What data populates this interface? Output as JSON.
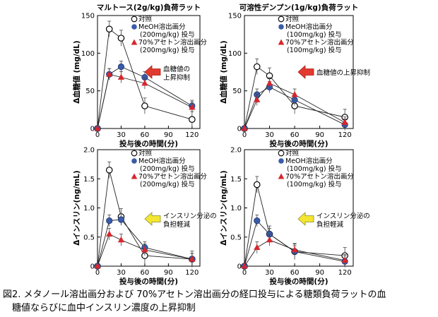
{
  "caption": {
    "line1": "図2. メタノール溶出画分および 70%アセトン溶出画分の経口投与による糖類負荷ラットの血",
    "line2": "糖値ならびに血中インスリン濃度の上昇抑制"
  },
  "colors": {
    "meoh": "#3a5ba8",
    "acetone": "#d8262c",
    "control": "#ffffff",
    "arrow_red": "#e23a2e",
    "arrow_yellow": "#f4e630"
  },
  "chart_data": [
    {
      "type": "line",
      "title": "マルトース(2g/kg)負荷ラット",
      "xlabel": "投与後の時間(分)",
      "ylabel": "Δ血糖値 (mg/dL)",
      "x": [
        0,
        15,
        30,
        60,
        120
      ],
      "xticks": [
        "0",
        "30",
        "60",
        "90",
        "120"
      ],
      "xlim": [
        0,
        130
      ],
      "ylim": [
        0,
        150
      ],
      "yticks": [
        "0",
        "50",
        "100",
        "150"
      ],
      "series": [
        {
          "name": "対照",
          "marker": "circle-open",
          "values": [
            0,
            132,
            120,
            30,
            12
          ]
        },
        {
          "name": "MeOH溶出画分",
          "name2": "(200mg/kg) 投与",
          "marker": "circle-filled",
          "values": [
            0,
            72,
            82,
            68,
            30
          ]
        },
        {
          "name": "70%アセトン溶出画分",
          "name2": "(200mg/kg) 投与",
          "marker": "triangle-filled",
          "values": [
            0,
            72,
            68,
            60,
            28
          ]
        }
      ],
      "annotation": {
        "line1": "血糖値の",
        "line2": "上昇抑制",
        "arrow": "red"
      }
    },
    {
      "type": "line",
      "title": "可溶性デンプン(1g/kg)負荷ラット",
      "xlabel": "投与後の時間(分)",
      "ylabel": "Δ血糖値 (mg/dL)",
      "x": [
        0,
        15,
        30,
        60,
        120
      ],
      "xticks": [
        "0",
        "30",
        "60",
        "90",
        "120"
      ],
      "xlim": [
        0,
        130
      ],
      "ylim": [
        0,
        150
      ],
      "yticks": [
        "0",
        "50",
        "100",
        "150"
      ],
      "series": [
        {
          "name": "対照",
          "marker": "circle-open",
          "values": [
            0,
            82,
            70,
            30,
            15
          ]
        },
        {
          "name": "MeOH溶出画分",
          "name2": "(100mg/kg) 投与",
          "marker": "circle-filled",
          "values": [
            0,
            45,
            55,
            38,
            5
          ]
        },
        {
          "name": "70%アセトン溶出画分",
          "name2": "(100mg/kg) 投与",
          "marker": "triangle-filled",
          "values": [
            0,
            38,
            60,
            45,
            8
          ]
        }
      ],
      "annotation": {
        "line1": "血糖値の上昇抑制",
        "line2": "",
        "arrow": "red"
      }
    },
    {
      "type": "line",
      "title": "",
      "xlabel": "投与後の時間(分)",
      "ylabel": "Δインスリン(ng/mL)",
      "x": [
        0,
        15,
        30,
        60,
        120
      ],
      "xticks": [
        "0",
        "30",
        "60",
        "90",
        "120"
      ],
      "xlim": [
        0,
        130
      ],
      "ylim": [
        0,
        2.0
      ],
      "yticks": [
        "0",
        "0.5",
        "1.0",
        "1.5",
        "2.0"
      ],
      "series": [
        {
          "name": "対照",
          "marker": "circle-open",
          "values": [
            0,
            1.65,
            0.85,
            0.18,
            0.12
          ]
        },
        {
          "name": "MeOH溶出画分",
          "name2": "(200mg/kg) 投与",
          "marker": "circle-filled",
          "values": [
            0,
            0.78,
            0.8,
            0.32,
            0.12
          ]
        },
        {
          "name": "70%アセトン溶出画分",
          "name2": "(200mg/kg) 投与",
          "marker": "triangle-filled",
          "values": [
            0,
            0.55,
            0.45,
            0.28,
            0.12
          ]
        }
      ],
      "annotation": {
        "line1": "インスリン分泌の",
        "line2": "負担軽減",
        "arrow": "yellow"
      }
    },
    {
      "type": "line",
      "title": "",
      "xlabel": "投与後の時間(分)",
      "ylabel": "Δインスリン(ng/mL)",
      "x": [
        0,
        15,
        30,
        60,
        120
      ],
      "xticks": [
        "0",
        "30",
        "60",
        "90",
        "120"
      ],
      "xlim": [
        0,
        130
      ],
      "ylim": [
        0,
        2.0
      ],
      "yticks": [
        "0",
        "0.5",
        "1.0",
        "1.5",
        "2.0"
      ],
      "series": [
        {
          "name": "対照",
          "marker": "circle-open",
          "values": [
            0,
            1.4,
            0.55,
            0.25,
            0.18
          ]
        },
        {
          "name": "MeOH溶出画分",
          "name2": "(100mg/kg) 投与",
          "marker": "circle-filled",
          "values": [
            0,
            0.78,
            0.55,
            0.25,
            0.08
          ]
        },
        {
          "name": "70%アセトン溶出画分",
          "name2": "(100mg/kg) 投与",
          "marker": "triangle-filled",
          "values": [
            0,
            0.32,
            0.45,
            0.28,
            0.1
          ]
        }
      ],
      "annotation": {
        "line1": "インスリン分泌の",
        "line2": "負担軽減",
        "arrow": "yellow"
      }
    }
  ]
}
